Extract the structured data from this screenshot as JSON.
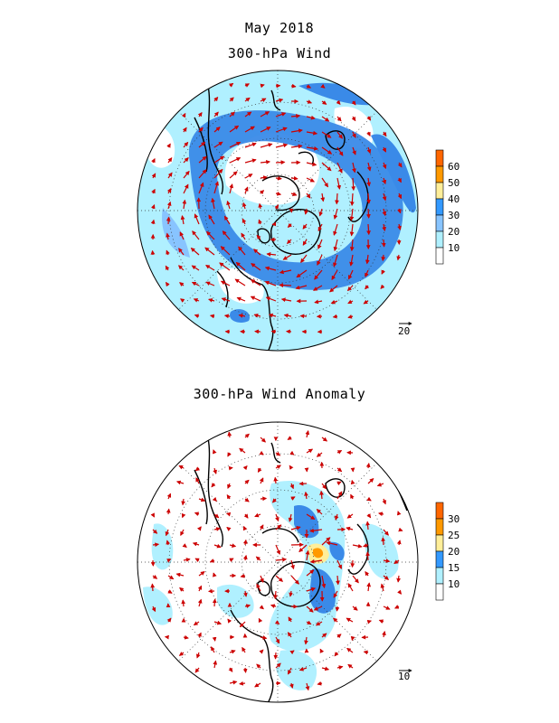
{
  "header": {
    "title": "May 2018",
    "subtitle": "300-hPa Wind"
  },
  "anomaly_panel": {
    "title": "300-hPa Wind Anomaly"
  },
  "wind_panel": {
    "colorbar_labels": [
      "60",
      "50",
      "40",
      "30",
      "20",
      "10"
    ],
    "colorbar_colors": [
      "#ff6600",
      "#ff9900",
      "#ffee99",
      "#3399ff",
      "#88c4ff",
      "#b0f0ff",
      "#ffffff"
    ],
    "reference_vector": "20"
  },
  "anomaly_colorbar": {
    "labels": [
      "30",
      "25",
      "20",
      "15",
      "10"
    ],
    "colors": [
      "#ff6600",
      "#ff9900",
      "#ffee99",
      "#3399ff",
      "#b0f0ff",
      "#ffffff"
    ],
    "reference_vector": "10"
  },
  "colors": {
    "vector": "#cc0000",
    "coast": "#000000",
    "light_blue": "#b0f0ff",
    "mid_blue": "#88c4ff",
    "blue": "#3a8ae8"
  }
}
